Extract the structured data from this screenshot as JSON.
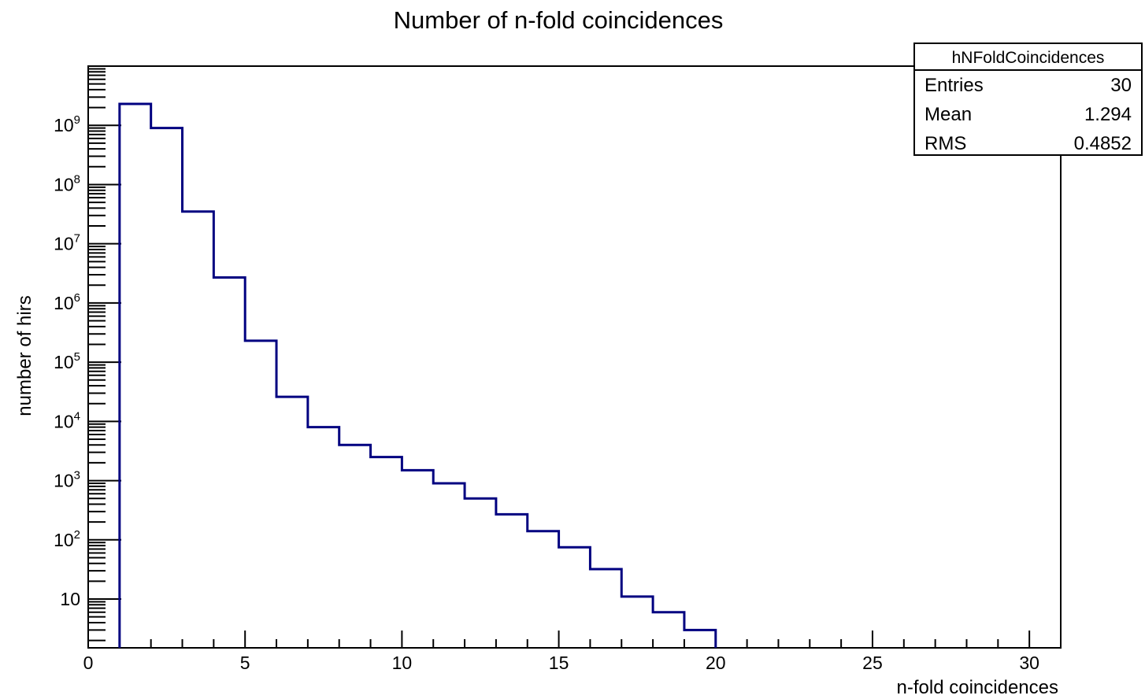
{
  "chart_data": {
    "type": "histogram",
    "title": "Number of n-fold coincidences",
    "xlabel": "n-fold coincidences",
    "ylabel": "number of hirs",
    "xlim": [
      0,
      31
    ],
    "ylim": [
      1.5,
      10000000000
    ],
    "log_y": true,
    "grid": false,
    "x_ticks": [
      0,
      5,
      10,
      15,
      20,
      25,
      30
    ],
    "y_ticks": [
      {
        "value": 10,
        "label": "10"
      },
      {
        "value": 100,
        "label": "10",
        "exp": "2"
      },
      {
        "value": 1000,
        "label": "10",
        "exp": "3"
      },
      {
        "value": 10000,
        "label": "10",
        "exp": "4"
      },
      {
        "value": 100000,
        "label": "10",
        "exp": "5"
      },
      {
        "value": 1000000,
        "label": "10",
        "exp": "6"
      },
      {
        "value": 10000000,
        "label": "10",
        "exp": "7"
      },
      {
        "value": 100000000,
        "label": "10",
        "exp": "8"
      },
      {
        "value": 1000000000,
        "label": "10",
        "exp": "9"
      }
    ],
    "series": [
      {
        "color": "#000080",
        "bin_edges": [
          1,
          2,
          3,
          4,
          5,
          6,
          7,
          8,
          9,
          10,
          11,
          12,
          13,
          14,
          15,
          16,
          17,
          18,
          19,
          20
        ],
        "values": [
          2300000000,
          900000000,
          35000000,
          2700000,
          230000,
          26000,
          8000,
          4000,
          2500,
          1500,
          900,
          500,
          270,
          140,
          75,
          32,
          11,
          6,
          3
        ]
      }
    ],
    "stats": {
      "name": "hNFoldCoincidences",
      "rows": [
        {
          "label": "Entries",
          "value": "30"
        },
        {
          "label": "Mean",
          "value": "1.294"
        },
        {
          "label": "RMS",
          "value": "0.4852"
        }
      ]
    }
  }
}
